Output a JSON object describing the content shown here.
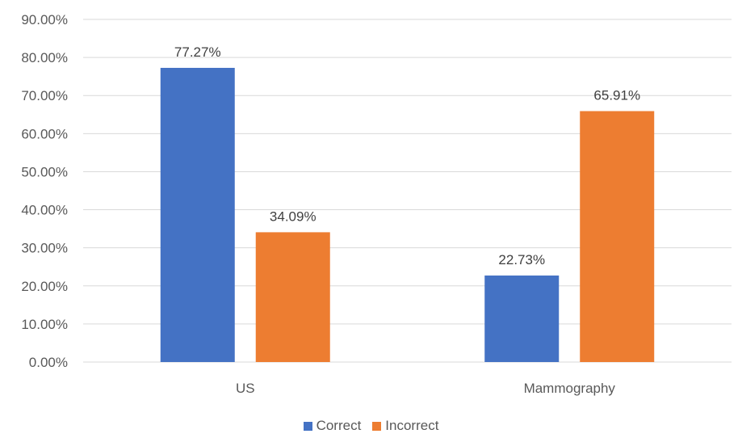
{
  "chart_data": {
    "type": "bar",
    "categories": [
      "US",
      "Mammography"
    ],
    "series": [
      {
        "name": "Correct",
        "values": [
          77.27,
          22.73
        ],
        "labels": [
          "77.27%",
          "22.73%"
        ],
        "color": "#4472C4"
      },
      {
        "name": "Incorrect",
        "values": [
          34.09,
          65.91
        ],
        "labels": [
          "34.09%",
          "65.91%"
        ],
        "color": "#ED7D31"
      }
    ],
    "yticks": [
      "0.00%",
      "10.00%",
      "20.00%",
      "30.00%",
      "40.00%",
      "50.00%",
      "60.00%",
      "70.00%",
      "80.00%",
      "90.00%"
    ],
    "ylim": [
      0,
      90
    ],
    "grid": true,
    "legend": "bottom",
    "title": "",
    "xlabel": "",
    "ylabel": ""
  }
}
